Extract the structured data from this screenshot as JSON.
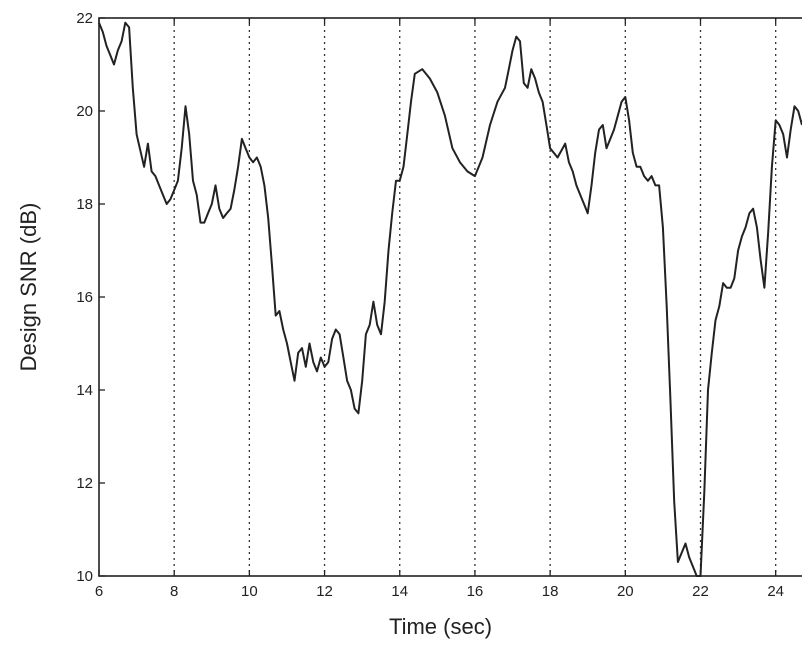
{
  "chart_data": {
    "type": "line",
    "xlabel": "Time (sec)",
    "ylabel": "Design SNR (dB)",
    "xlim": [
      6,
      24.7
    ],
    "ylim": [
      10,
      22
    ],
    "x_ticks": [
      6,
      8,
      10,
      12,
      14,
      16,
      18,
      20,
      22,
      24
    ],
    "x_tick_labels": [
      "6",
      "8",
      "10",
      "12",
      "14",
      "16",
      "18",
      "20",
      "22",
      "24"
    ],
    "y_ticks": [
      10,
      12,
      14,
      16,
      18,
      20,
      22
    ],
    "y_tick_labels": [
      "10",
      "12",
      "14",
      "16",
      "18",
      "20",
      "22"
    ],
    "vertical_grid": true,
    "grid_style": "dotted",
    "line_color": "#222222",
    "series": [
      {
        "x": [
          6.0,
          6.1,
          6.2,
          6.3,
          6.4,
          6.5,
          6.6,
          6.7,
          6.8,
          6.9,
          7.0,
          7.2,
          7.3,
          7.4,
          7.5,
          7.6,
          7.7,
          7.8,
          7.9,
          8.0,
          8.1,
          8.2,
          8.3,
          8.4,
          8.5,
          8.6,
          8.7,
          8.8,
          8.9,
          9.0,
          9.1,
          9.2,
          9.3,
          9.4,
          9.5,
          9.6,
          9.7,
          9.8,
          9.9,
          10.0,
          10.1,
          10.2,
          10.3,
          10.4,
          10.5,
          10.6,
          10.7,
          10.8,
          10.9,
          11.0,
          11.1,
          11.2,
          11.3,
          11.4,
          11.5,
          11.6,
          11.7,
          11.8,
          11.9,
          12.0,
          12.1,
          12.2,
          12.3,
          12.4,
          12.5,
          12.6,
          12.7,
          12.8,
          12.9,
          13.0,
          13.1,
          13.2,
          13.3,
          13.4,
          13.5,
          13.6,
          13.7,
          13.8,
          13.9,
          14.0,
          14.1,
          14.2,
          14.3,
          14.4,
          14.6,
          14.8,
          15.0,
          15.2,
          15.4,
          15.6,
          15.8,
          16.0,
          16.2,
          16.4,
          16.6,
          16.8,
          16.9,
          17.0,
          17.1,
          17.2,
          17.3,
          17.4,
          17.5,
          17.6,
          17.7,
          17.8,
          17.9,
          18.0,
          18.2,
          18.4,
          18.5,
          18.6,
          18.7,
          18.8,
          18.9,
          19.0,
          19.1,
          19.2,
          19.3,
          19.4,
          19.5,
          19.6,
          19.7,
          19.8,
          19.9,
          20.0,
          20.1,
          20.2,
          20.3,
          20.4,
          20.5,
          20.6,
          20.7,
          20.8,
          20.9,
          21.0,
          21.1,
          21.2,
          21.3,
          21.4,
          21.5,
          21.6,
          21.7,
          21.8,
          21.9,
          22.0,
          22.1,
          22.2,
          22.3,
          22.4,
          22.5,
          22.6,
          22.7,
          22.8,
          22.9,
          23.0,
          23.1,
          23.2,
          23.3,
          23.4,
          23.5,
          23.6,
          23.7,
          23.8,
          23.9,
          24.0,
          24.1,
          24.2,
          24.3,
          24.4,
          24.5,
          24.6,
          24.7
        ],
        "y": [
          21.9,
          21.7,
          21.4,
          21.2,
          21.0,
          21.3,
          21.5,
          21.9,
          21.8,
          20.5,
          19.5,
          18.8,
          19.3,
          18.7,
          18.6,
          18.4,
          18.2,
          18.0,
          18.1,
          18.3,
          18.5,
          19.2,
          20.1,
          19.5,
          18.5,
          18.2,
          17.6,
          17.6,
          17.8,
          18.0,
          18.4,
          17.9,
          17.7,
          17.8,
          17.9,
          18.3,
          18.8,
          19.4,
          19.2,
          19.0,
          18.9,
          19.0,
          18.8,
          18.4,
          17.7,
          16.7,
          15.6,
          15.7,
          15.3,
          15.0,
          14.6,
          14.2,
          14.8,
          14.9,
          14.5,
          15.0,
          14.6,
          14.4,
          14.7,
          14.5,
          14.6,
          15.1,
          15.3,
          15.2,
          14.7,
          14.2,
          14.0,
          13.6,
          13.5,
          14.2,
          15.2,
          15.4,
          15.9,
          15.4,
          15.2,
          15.9,
          17.0,
          17.8,
          18.5,
          18.5,
          18.8,
          19.5,
          20.2,
          20.8,
          20.9,
          20.7,
          20.4,
          19.9,
          19.2,
          18.9,
          18.7,
          18.6,
          19.0,
          19.7,
          20.2,
          20.5,
          20.9,
          21.3,
          21.6,
          21.5,
          20.6,
          20.5,
          20.9,
          20.7,
          20.4,
          20.2,
          19.7,
          19.2,
          19.0,
          19.3,
          18.9,
          18.7,
          18.4,
          18.2,
          18.0,
          17.8,
          18.4,
          19.1,
          19.6,
          19.7,
          19.2,
          19.4,
          19.6,
          19.9,
          20.2,
          20.3,
          19.8,
          19.1,
          18.8,
          18.8,
          18.6,
          18.5,
          18.6,
          18.4,
          18.4,
          17.5,
          15.8,
          13.8,
          11.6,
          10.3,
          10.5,
          10.7,
          10.4,
          10.2,
          10.0,
          10.0,
          11.8,
          14.0,
          14.8,
          15.5,
          15.8,
          16.3,
          16.2,
          16.2,
          16.4,
          17.0,
          17.3,
          17.5,
          17.8,
          17.9,
          17.5,
          16.8,
          16.2,
          17.4,
          18.8,
          19.8,
          19.7,
          19.5,
          19.0,
          19.6,
          20.1,
          20.0,
          19.7
        ]
      }
    ]
  }
}
